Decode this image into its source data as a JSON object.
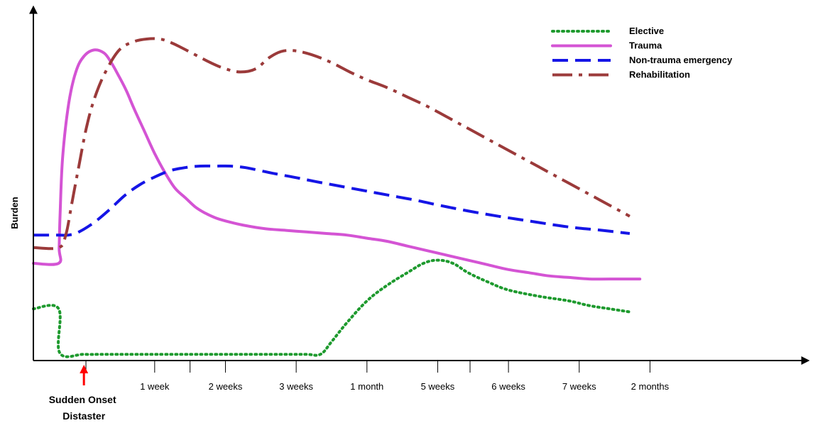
{
  "chart_data": {
    "type": "line",
    "title": "",
    "xlabel": "",
    "ylabel": "Burden",
    "grid": false,
    "legend_position": "top-right",
    "x_unit": "days",
    "xlim": [
      -5,
      67
    ],
    "ylim": [
      0,
      100
    ],
    "x_tick_labels": [
      {
        "x": 7,
        "label": "1 week"
      },
      {
        "x": 14,
        "label": "2 weeks"
      },
      {
        "x": 21,
        "label": "3 weeks"
      },
      {
        "x": 28,
        "label": "1 month"
      },
      {
        "x": 35,
        "label": "5 weeks"
      },
      {
        "x": 42,
        "label": "6 weeks"
      },
      {
        "x": 49,
        "label": "7 weeks"
      },
      {
        "x": 56,
        "label": "2 months"
      }
    ],
    "extra_ticks": [
      0.2,
      10.5,
      38.2
    ],
    "annotation": {
      "x": 0,
      "lines": [
        "Sudden Onset",
        "Distaster"
      ],
      "color": "#ff0000"
    },
    "series": [
      {
        "name": "Elective",
        "color": "#1e9a2e",
        "style": "dotted",
        "x": [
          -5,
          -2.5,
          -2.4,
          0,
          2,
          5,
          8,
          11,
          14,
          17,
          20,
          22,
          23.4,
          24.5,
          26,
          28,
          30,
          32,
          33.6,
          35,
          36.5,
          38,
          40,
          42,
          45,
          48,
          50,
          52,
          54
        ],
        "y": [
          16.5,
          16.5,
          2.5,
          2,
          2,
          2,
          2,
          2,
          2,
          2,
          2,
          2,
          2,
          6,
          12,
          19,
          24,
          28,
          31,
          32,
          31,
          28,
          25,
          22.5,
          20.5,
          19,
          17.5,
          16.5,
          15.5
        ]
      },
      {
        "name": "Trauma",
        "color": "#d454d4",
        "style": "solid",
        "x": [
          -5,
          -2.5,
          -2.45,
          -2.35,
          -2.1,
          -1.5,
          -0.8,
          0,
          1,
          2,
          2.7,
          3.4,
          4.2,
          5,
          6,
          7,
          8,
          9,
          10,
          11,
          12,
          13,
          14,
          16,
          18,
          20,
          22,
          24,
          26,
          28,
          30,
          32,
          34,
          36,
          38,
          40,
          42,
          44,
          46,
          48,
          50,
          52,
          55
        ],
        "y": [
          31,
          31,
          36,
          47,
          65,
          82,
          92,
          97,
          99,
          98,
          95,
          91,
          86,
          80,
          73,
          66,
          60,
          55,
          52,
          49,
          47,
          45.5,
          44.5,
          43,
          42,
          41.5,
          41,
          40.5,
          40,
          39,
          38,
          36.5,
          35,
          33.5,
          32,
          30.5,
          29,
          28,
          27,
          26.5,
          26,
          26,
          26
        ]
      },
      {
        "name": "Non-trauma emergency",
        "color": "#1515e6",
        "style": "dashed",
        "x": [
          -5,
          -2.5,
          -1.5,
          -0.5,
          1,
          2.5,
          4,
          5.5,
          7,
          8.5,
          10,
          11.5,
          13,
          14.5,
          16,
          17.5,
          19,
          21,
          23,
          25,
          27,
          29,
          31,
          33,
          35,
          37,
          39,
          41,
          43,
          45,
          47,
          49,
          51,
          54
        ],
        "y": [
          40,
          40,
          40,
          41,
          44,
          48,
          52.5,
          56,
          58.5,
          60.5,
          61.5,
          62,
          62,
          62,
          61.5,
          60.5,
          59.5,
          58.3,
          57,
          55.8,
          54.6,
          53.4,
          52.2,
          51,
          49.6,
          48.3,
          47.1,
          46,
          45,
          44,
          43,
          42.2,
          41.6,
          40.5
        ]
      },
      {
        "name": "Rehabilitation",
        "color": "#9b3a3a",
        "style": "dashdot",
        "x": [
          -5,
          -2.5,
          -1.8,
          -1.2,
          -0.5,
          0.3,
          1.2,
          2.3,
          3.5,
          4.8,
          6.2,
          7.5,
          8.5,
          9.5,
          11,
          12.5,
          14,
          15.5,
          17,
          18.3,
          19.5,
          20.7,
          22,
          23.4,
          24.8,
          26.3,
          28,
          30,
          32,
          34,
          36,
          38,
          40,
          42,
          44,
          46,
          48,
          50,
          52,
          54
        ],
        "y": [
          36,
          36,
          40,
          50,
          62,
          75,
          85,
          93,
          99,
          101.5,
          102.5,
          102.5,
          101.5,
          100,
          97.5,
          95,
          93,
          92,
          93,
          96.5,
          98.5,
          98.8,
          98,
          96.5,
          94.5,
          92,
          89.5,
          87,
          84,
          81,
          77.5,
          74,
          70.5,
          67,
          63.5,
          60,
          56.5,
          53,
          49.5,
          46
        ]
      }
    ]
  }
}
